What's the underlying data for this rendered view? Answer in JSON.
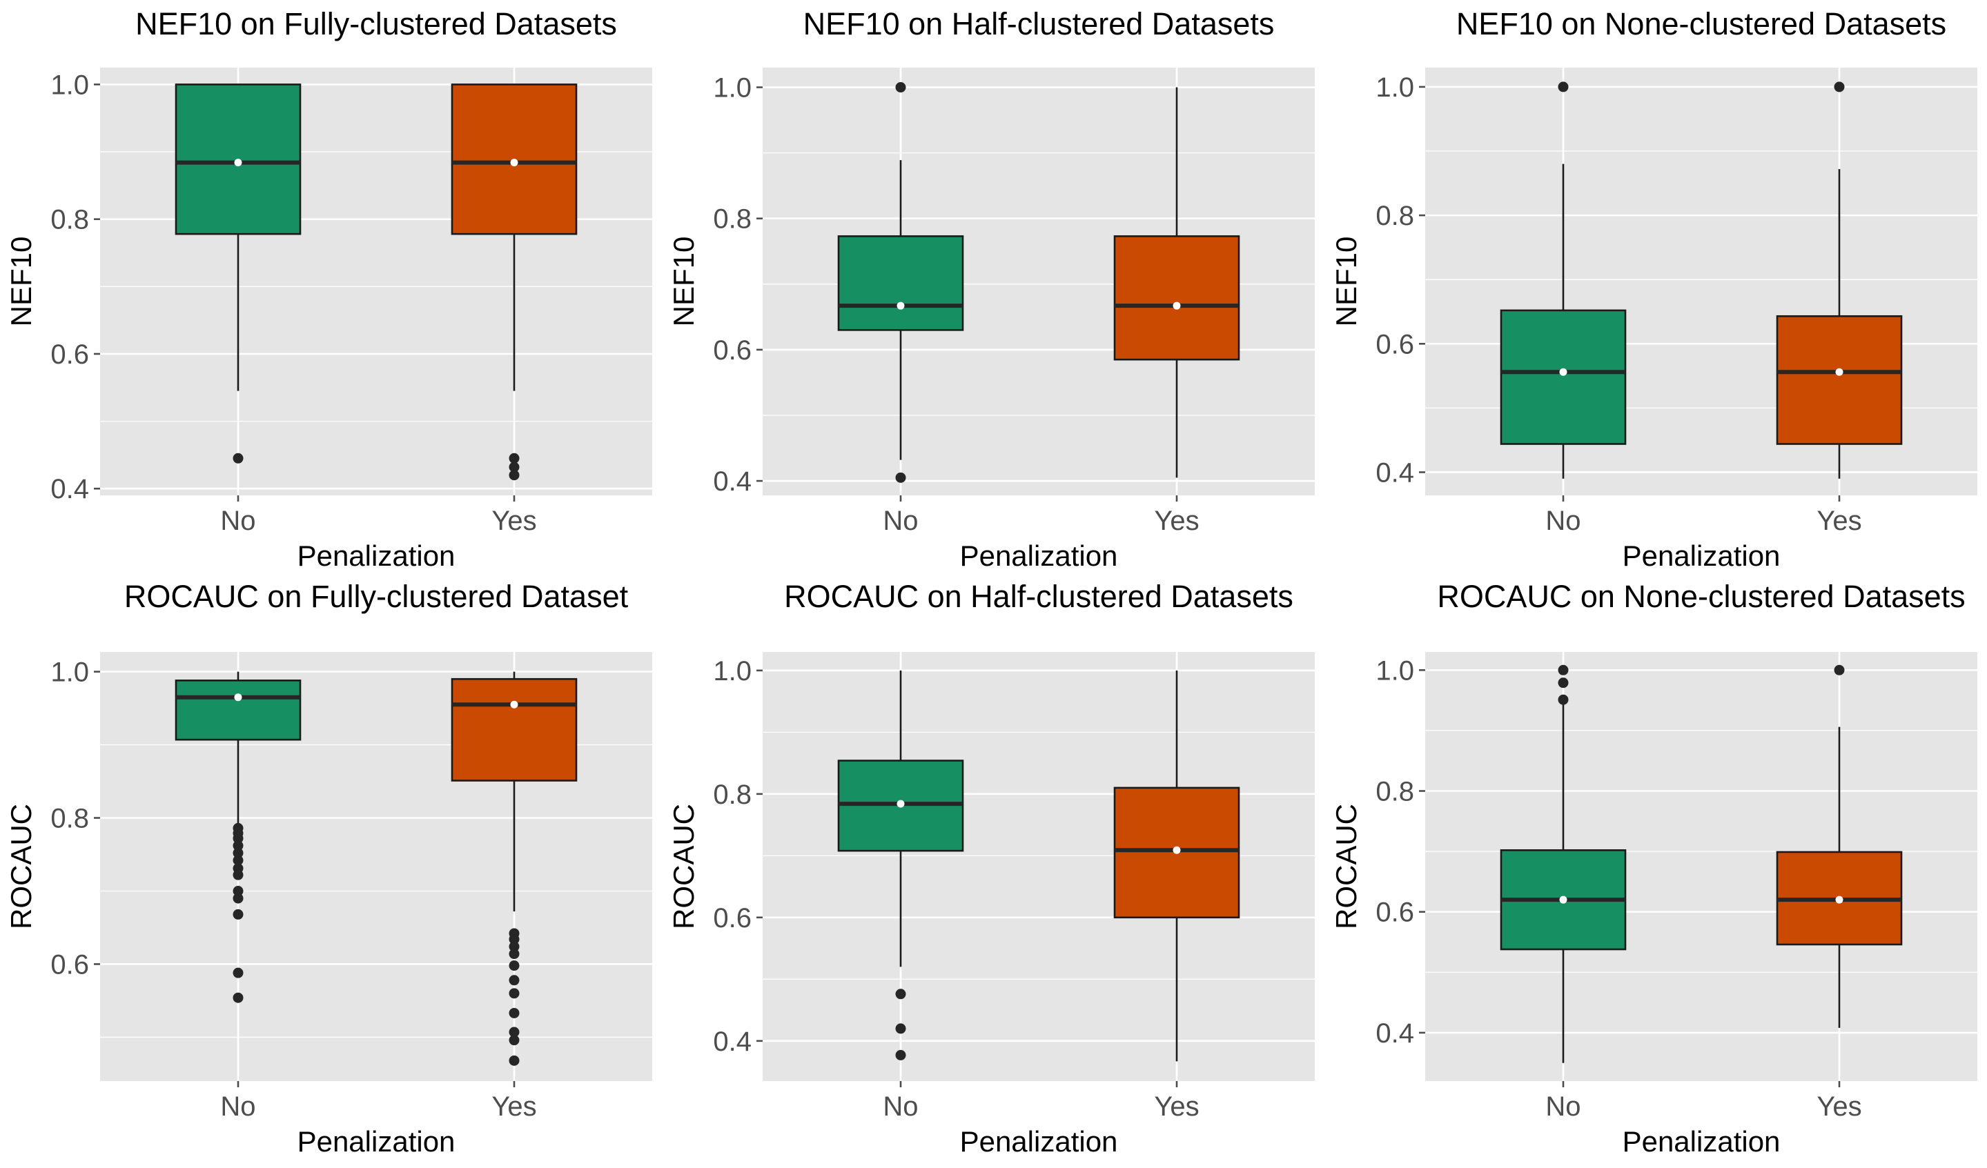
{
  "chart_data": [
    {
      "type": "box",
      "title": "NEF10 on Fully-clustered Datasets",
      "xlabel": "Penalization",
      "ylabel": "NEF10",
      "categories": [
        "No",
        "Yes"
      ],
      "ylim": [
        0.39,
        1.025
      ],
      "yticks": [
        0.4,
        0.6,
        0.8,
        1.0
      ],
      "ytick_labels": [
        "0.4",
        "0.6",
        "0.8",
        "1.0"
      ],
      "boxes": [
        {
          "category": "No",
          "whisker_low": 0.545,
          "q1": 0.778,
          "median": 0.884,
          "q3": 1.0,
          "whisker_high": 1.0,
          "mean": 0.884,
          "outliers": [
            0.445
          ]
        },
        {
          "category": "Yes",
          "whisker_low": 0.545,
          "q1": 0.778,
          "median": 0.884,
          "q3": 1.0,
          "whisker_high": 1.0,
          "mean": 0.884,
          "outliers": [
            0.445,
            0.432,
            0.42
          ]
        }
      ]
    },
    {
      "type": "box",
      "title": "NEF10 on Half-clustered Datasets",
      "xlabel": "Penalization",
      "ylabel": "NEF10",
      "categories": [
        "No",
        "Yes"
      ],
      "ylim": [
        0.378,
        1.03
      ],
      "yticks": [
        0.4,
        0.6,
        0.8,
        1.0
      ],
      "ytick_labels": [
        "0.4",
        "0.6",
        "0.8",
        "1.0"
      ],
      "boxes": [
        {
          "category": "No",
          "whisker_low": 0.432,
          "q1": 0.63,
          "median": 0.667,
          "q3": 0.773,
          "whisker_high": 0.889,
          "mean": 0.667,
          "outliers": [
            1.0,
            0.405
          ]
        },
        {
          "category": "Yes",
          "whisker_low": 0.405,
          "q1": 0.585,
          "median": 0.667,
          "q3": 0.773,
          "whisker_high": 1.0,
          "mean": 0.667,
          "outliers": []
        }
      ]
    },
    {
      "type": "box",
      "title": "NEF10 on None-clustered Datasets",
      "xlabel": "Penalization",
      "ylabel": "NEF10",
      "categories": [
        "No",
        "Yes"
      ],
      "ylim": [
        0.364,
        1.03
      ],
      "yticks": [
        0.4,
        0.6,
        0.8,
        1.0
      ],
      "ytick_labels": [
        "0.4",
        "0.6",
        "0.8",
        "1.0"
      ],
      "boxes": [
        {
          "category": "No",
          "whisker_low": 0.39,
          "q1": 0.444,
          "median": 0.556,
          "q3": 0.652,
          "whisker_high": 0.88,
          "mean": 0.556,
          "outliers": [
            1.0
          ]
        },
        {
          "category": "Yes",
          "whisker_low": 0.39,
          "q1": 0.444,
          "median": 0.556,
          "q3": 0.643,
          "whisker_high": 0.872,
          "mean": 0.556,
          "outliers": [
            1.0
          ]
        }
      ]
    },
    {
      "type": "box",
      "title": "ROCAUC on Fully-clustered Dataset",
      "xlabel": "Penalization",
      "ylabel": "ROCAUC",
      "categories": [
        "No",
        "Yes"
      ],
      "ylim": [
        0.44,
        1.027
      ],
      "yticks": [
        0.6,
        0.8,
        1.0
      ],
      "ytick_labels": [
        "0.6",
        "0.8",
        "1.0"
      ],
      "boxes": [
        {
          "category": "No",
          "whisker_low": 0.79,
          "q1": 0.907,
          "median": 0.965,
          "q3": 0.988,
          "whisker_high": 1.0,
          "mean": 0.965,
          "outliers": [
            0.786,
            0.779,
            0.772,
            0.762,
            0.752,
            0.742,
            0.731,
            0.722,
            0.7,
            0.69,
            0.668,
            0.588,
            0.554
          ]
        },
        {
          "category": "Yes",
          "whisker_low": 0.672,
          "q1": 0.851,
          "median": 0.955,
          "q3": 0.99,
          "whisker_high": 1.0,
          "mean": 0.955,
          "outliers": [
            0.642,
            0.634,
            0.624,
            0.614,
            0.598,
            0.578,
            0.56,
            0.533,
            0.507,
            0.496,
            0.468
          ]
        }
      ]
    },
    {
      "type": "box",
      "title": "ROCAUC on Half-clustered Datasets",
      "xlabel": "Penalization",
      "ylabel": "ROCAUC",
      "categories": [
        "No",
        "Yes"
      ],
      "ylim": [
        0.335,
        1.03
      ],
      "yticks": [
        0.4,
        0.6,
        0.8,
        1.0
      ],
      "ytick_labels": [
        "0.4",
        "0.6",
        "0.8",
        "1.0"
      ],
      "boxes": [
        {
          "category": "No",
          "whisker_low": 0.52,
          "q1": 0.708,
          "median": 0.784,
          "q3": 0.854,
          "whisker_high": 1.0,
          "mean": 0.784,
          "outliers": [
            0.476,
            0.42,
            0.377
          ]
        },
        {
          "category": "Yes",
          "whisker_low": 0.367,
          "q1": 0.6,
          "median": 0.709,
          "q3": 0.81,
          "whisker_high": 1.0,
          "mean": 0.709,
          "outliers": []
        }
      ]
    },
    {
      "type": "box",
      "title": "ROCAUC on None-clustered Datasets",
      "xlabel": "Penalization",
      "ylabel": "ROCAUC",
      "categories": [
        "No",
        "Yes"
      ],
      "ylim": [
        0.32,
        1.03
      ],
      "yticks": [
        0.4,
        0.6,
        0.8,
        1.0
      ],
      "ytick_labels": [
        "0.4",
        "0.6",
        "0.8",
        "1.0"
      ],
      "boxes": [
        {
          "category": "No",
          "whisker_low": 0.35,
          "q1": 0.538,
          "median": 0.62,
          "q3": 0.702,
          "whisker_high": 0.95,
          "mean": 0.62,
          "outliers": [
            1.0,
            0.979,
            0.951
          ]
        },
        {
          "category": "Yes",
          "whisker_low": 0.408,
          "q1": 0.546,
          "median": 0.62,
          "q3": 0.699,
          "whisker_high": 0.906,
          "mean": 0.62,
          "outliers": [
            1.0
          ]
        }
      ]
    }
  ],
  "colors": {
    "No": "#168f62",
    "Yes": "#ca4a02",
    "panel_background": "#e5e5e5"
  }
}
